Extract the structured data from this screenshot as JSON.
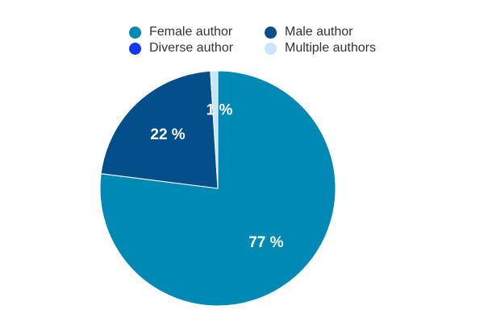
{
  "chart_data": {
    "type": "pie",
    "series": [
      {
        "name": "Female author",
        "value": 77,
        "label": "77 %",
        "color": "#0089b4"
      },
      {
        "name": "Male author",
        "value": 22,
        "label": "22 %",
        "color": "#034f8b"
      },
      {
        "name": "Diverse author",
        "value": 0,
        "label": "",
        "color": "#1437f0"
      },
      {
        "name": "Multiple authors",
        "value": 1,
        "label": "1 %",
        "color": "#c8e6f8"
      }
    ],
    "legend_position": "top"
  }
}
